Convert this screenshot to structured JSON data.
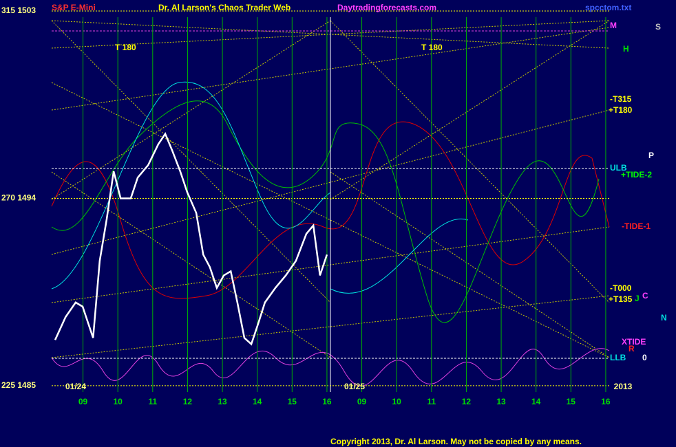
{
  "chart_data": {
    "type": "line",
    "title": "Dr. Al Larson's Chaos Trader Web",
    "subtitle": "S&P E-Mini",
    "site": "Daytradingforecasts.com",
    "file": "spcctom.txt",
    "copyright": "Copyright 2013, Dr. Al Larson. May not be copied by any means.",
    "dates": [
      "01/24",
      "01/25",
      "2013"
    ],
    "xlim": [
      -0.9,
      15.1
    ],
    "xticks": [
      {
        "value": 0,
        "label": "09"
      },
      {
        "value": 1,
        "label": "10"
      },
      {
        "value": 2,
        "label": "11"
      },
      {
        "value": 3,
        "label": "12"
      },
      {
        "value": 4,
        "label": "13"
      },
      {
        "value": 5,
        "label": "14"
      },
      {
        "value": 6,
        "label": "15"
      },
      {
        "value": 7,
        "label": "16"
      },
      {
        "value": 8,
        "label": "09"
      },
      {
        "value": 9,
        "label": "10"
      },
      {
        "value": 10,
        "label": "11"
      },
      {
        "value": 11,
        "label": "12"
      },
      {
        "value": 12,
        "label": "13"
      },
      {
        "value": 13,
        "label": "14"
      },
      {
        "value": 14,
        "label": "15"
      },
      {
        "value": 15,
        "label": "16"
      }
    ],
    "ylim": [
      1484.7,
      1503.2
    ],
    "yticks": [
      {
        "value": 1503,
        "label": "315 1503"
      },
      {
        "value": 1494,
        "label": "270 1494"
      },
      {
        "value": 1485,
        "label": "225 1485"
      }
    ],
    "grid": true,
    "annotations": [
      "M",
      "H",
      "-T315",
      "+T180",
      "ULB",
      "+TIDE-2",
      "-TIDE-1",
      "-T000",
      "+T135",
      "XTIDE",
      "LLB",
      "S",
      "P",
      "N",
      "J",
      "C",
      "R",
      "0",
      "T 180",
      "T 180"
    ],
    "series": [
      {
        "name": "S&P E-Mini",
        "color": "#ffffff",
        "x": [
          -0.8,
          -0.5,
          -0.21,
          -0.01,
          0.29,
          0.48,
          0.68,
          0.88,
          1.08,
          1.37,
          1.57,
          1.87,
          2.16,
          2.36,
          2.56,
          2.79,
          2.99,
          3.25,
          3.45,
          3.64,
          3.84,
          4.04,
          4.24,
          4.43,
          4.63,
          4.83,
          5.03,
          5.22,
          5.52,
          5.82,
          6.11,
          6.41,
          6.61,
          6.8,
          7.0
        ],
        "values": [
          1487.2,
          1488.3,
          1489.0,
          1488.8,
          1487.3,
          1491.0,
          1493.0,
          1495.3,
          1494.0,
          1494.0,
          1495.0,
          1495.6,
          1496.6,
          1497.1,
          1496.3,
          1495.3,
          1494.3,
          1493.3,
          1491.3,
          1490.7,
          1489.7,
          1490.3,
          1490.5,
          1489.0,
          1487.3,
          1487.0,
          1488.0,
          1489.0,
          1489.7,
          1490.3,
          1491.0,
          1492.3,
          1492.7,
          1490.3,
          1491.3
        ]
      }
    ]
  }
}
